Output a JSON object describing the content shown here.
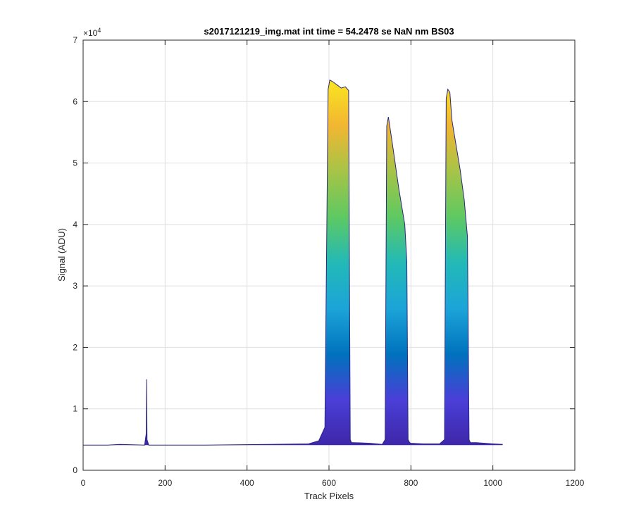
{
  "chart_data": {
    "type": "area",
    "title": "s2017121219_img.mat int time = 54.2478 se  NaN nm BS03",
    "xlabel": "Track Pixels",
    "ylabel": "Signal (ADU)",
    "xlim": [
      0,
      1200
    ],
    "ylim": [
      0,
      70000
    ],
    "xticks": [
      0,
      200,
      400,
      600,
      800,
      1000,
      1200
    ],
    "yticks": [
      0,
      10000,
      20000,
      30000,
      40000,
      50000,
      60000,
      70000
    ],
    "xtick_labels": [
      "0",
      "200",
      "400",
      "600",
      "800",
      "1000",
      "1200"
    ],
    "ytick_labels": [
      "0",
      "1",
      "2",
      "3",
      "4",
      "5",
      "6",
      "7"
    ],
    "y_exponent_label": "×10",
    "y_exponent_power": "4",
    "grid": true,
    "colormap": [
      "#3e26a8",
      "#4a3fd8",
      "#0072bd",
      "#1ca4d8",
      "#22b9b7",
      "#5ec962",
      "#a6c447",
      "#f2b632",
      "#f9e61f"
    ],
    "outline_color": "#2b2680",
    "series": [
      {
        "x": [
          0,
          60,
          90,
          150,
          154,
          155,
          156,
          160,
          300,
          450,
          550,
          575,
          590,
          598,
          602,
          610,
          620,
          630,
          640,
          648,
          652,
          655,
          660,
          700,
          730,
          737,
          741,
          745,
          755,
          770,
          785,
          790,
          793,
          797,
          800,
          830,
          870,
          882,
          886,
          890,
          895,
          900,
          910,
          920,
          930,
          938,
          942,
          945,
          960,
          1000,
          1024
        ],
        "y": [
          4100,
          4100,
          4200,
          4100,
          6000,
          14800,
          5000,
          4100,
          4100,
          4200,
          4300,
          4800,
          7000,
          62000,
          63500,
          63200,
          62700,
          62200,
          62400,
          61800,
          5000,
          4500,
          4500,
          4400,
          4200,
          5000,
          56000,
          57500,
          53000,
          46000,
          40000,
          34000,
          5000,
          4500,
          4400,
          4300,
          4300,
          5000,
          60500,
          62000,
          61500,
          57000,
          53000,
          49000,
          44000,
          38000,
          5000,
          4500,
          4500,
          4300,
          4200
        ]
      }
    ]
  }
}
